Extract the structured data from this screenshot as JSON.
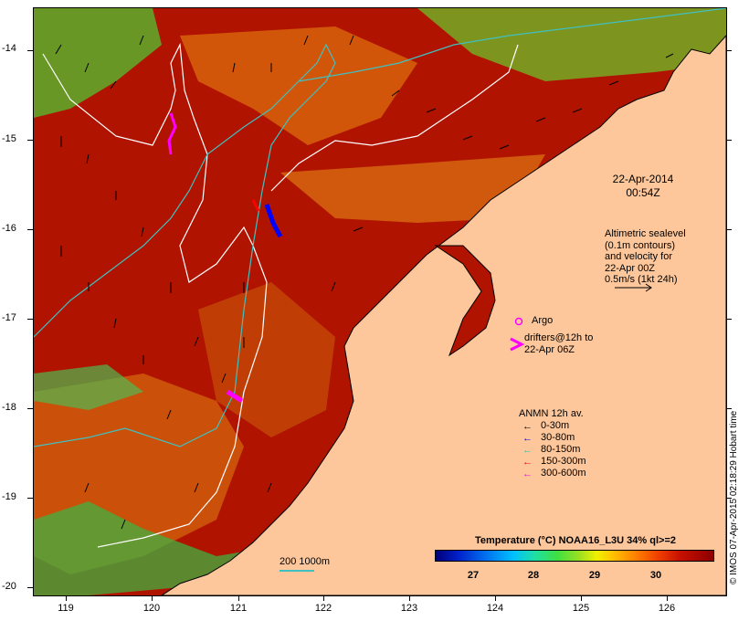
{
  "y_axis_labels": [
    "-14",
    "-15",
    "-16",
    "-17",
    "-18",
    "-19",
    "-20"
  ],
  "x_axis_labels": [
    "119",
    "120",
    "121",
    "122",
    "123",
    "124",
    "125",
    "126"
  ],
  "date_lines": [
    "22-Apr-2014",
    "00:54Z"
  ],
  "altimetry_lines": [
    "Altimetric sealevel",
    "(0.1m contours)",
    "and velocity for",
    "22-Apr 00Z",
    "0.5m/s (1kt 24h)"
  ],
  "argo_label": "Argo",
  "drifters_lines": [
    "drifters@12h to",
    "22-Apr 06Z"
  ],
  "anmn": {
    "title": "ANMN 12h av.",
    "items": [
      {
        "label": "0-30m",
        "color": "#000000"
      },
      {
        "label": "30-80m",
        "color": "#0000ff"
      },
      {
        "label": "80-150m",
        "color": "#00d0d0"
      },
      {
        "label": "150-300m",
        "color": "#ff0000"
      },
      {
        "label": "300-600m",
        "color": "#ff00ff"
      }
    ]
  },
  "colorbar": {
    "title": "Temperature (°C) NOAA16_L3U 34% ql>=2",
    "ticks": [
      "27",
      "28",
      "29",
      "30"
    ]
  },
  "depth_legend": "200  1000m",
  "credit": "© IMOS 07-Apr-2015 02:18:29 Hobart time",
  "colors": {
    "land": "#fdc79b",
    "warm_sst": "#b81800",
    "cool_sst": "#e07010",
    "bathy_200": "#40c0c0",
    "bathy_1000": "#ffffff"
  }
}
